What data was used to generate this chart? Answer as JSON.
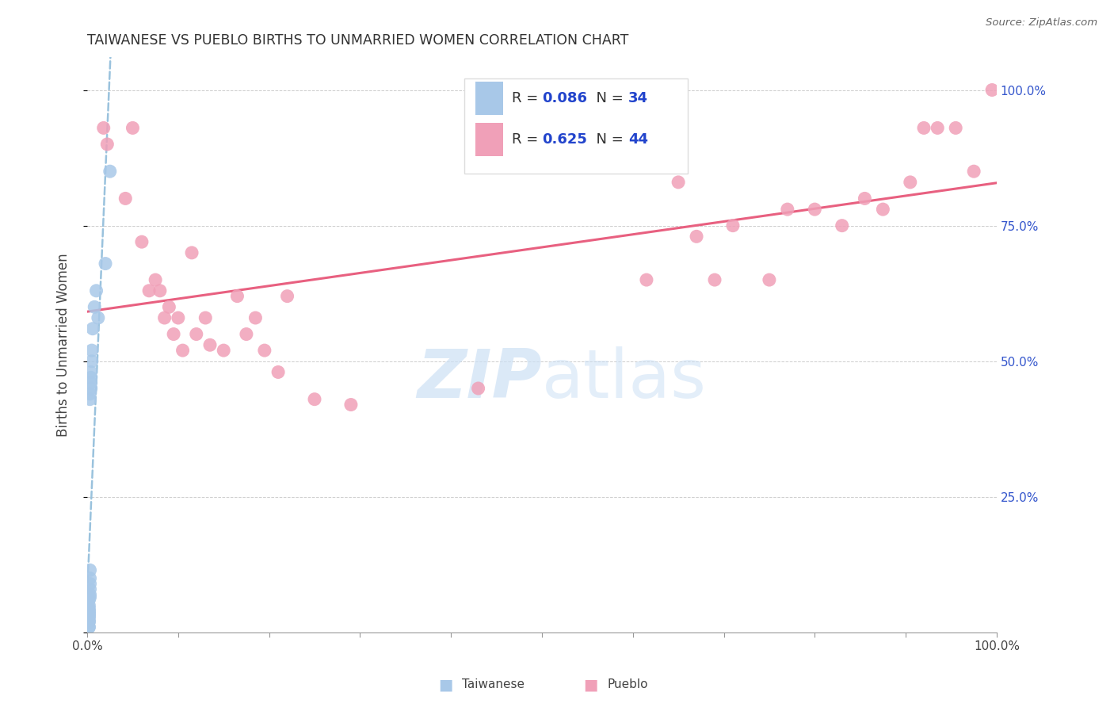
{
  "title": "TAIWANESE VS PUEBLO BIRTHS TO UNMARRIED WOMEN CORRELATION CHART",
  "source": "Source: ZipAtlas.com",
  "ylabel": "Births to Unmarried Women",
  "watermark_zip": "ZIP",
  "watermark_atlas": "atlas",
  "taiwanese_R": 0.086,
  "taiwanese_N": 34,
  "pueblo_R": 0.625,
  "pueblo_N": 44,
  "taiwanese_color": "#a8c8e8",
  "pueblo_color": "#f0a0b8",
  "trend_taiwanese_color": "#88b8d8",
  "trend_pueblo_color": "#e86080",
  "yticks": [
    0.0,
    0.25,
    0.5,
    0.75,
    1.0
  ],
  "ytick_labels": [
    "",
    "25.0%",
    "50.0%",
    "75.0%",
    "100.0%"
  ],
  "taiwanese_x": [
    0.002,
    0.002,
    0.002,
    0.002,
    0.002,
    0.002,
    0.002,
    0.002,
    0.002,
    0.002,
    0.002,
    0.002,
    0.002,
    0.002,
    0.003,
    0.003,
    0.003,
    0.003,
    0.003,
    0.003,
    0.003,
    0.003,
    0.004,
    0.004,
    0.004,
    0.004,
    0.005,
    0.005,
    0.006,
    0.008,
    0.01,
    0.012,
    0.02,
    0.025
  ],
  "taiwanese_y": [
    0.01,
    0.01,
    0.02,
    0.02,
    0.025,
    0.03,
    0.03,
    0.035,
    0.035,
    0.04,
    0.04,
    0.045,
    0.05,
    0.06,
    0.065,
    0.07,
    0.08,
    0.09,
    0.1,
    0.115,
    0.43,
    0.44,
    0.45,
    0.46,
    0.47,
    0.48,
    0.5,
    0.52,
    0.56,
    0.6,
    0.63,
    0.58,
    0.68,
    0.85
  ],
  "pueblo_x": [
    0.018,
    0.022,
    0.042,
    0.05,
    0.06,
    0.068,
    0.075,
    0.08,
    0.085,
    0.09,
    0.095,
    0.1,
    0.105,
    0.115,
    0.12,
    0.13,
    0.135,
    0.15,
    0.165,
    0.175,
    0.185,
    0.195,
    0.21,
    0.22,
    0.25,
    0.29,
    0.43,
    0.615,
    0.65,
    0.67,
    0.69,
    0.71,
    0.75,
    0.77,
    0.8,
    0.83,
    0.855,
    0.875,
    0.905,
    0.92,
    0.935,
    0.955,
    0.975,
    0.995
  ],
  "pueblo_y": [
    0.93,
    0.9,
    0.8,
    0.93,
    0.72,
    0.63,
    0.65,
    0.63,
    0.58,
    0.6,
    0.55,
    0.58,
    0.52,
    0.7,
    0.55,
    0.58,
    0.53,
    0.52,
    0.62,
    0.55,
    0.58,
    0.52,
    0.48,
    0.62,
    0.43,
    0.42,
    0.45,
    0.65,
    0.83,
    0.73,
    0.65,
    0.75,
    0.65,
    0.78,
    0.78,
    0.75,
    0.8,
    0.78,
    0.83,
    0.93,
    0.93,
    0.93,
    0.85,
    1.0
  ]
}
